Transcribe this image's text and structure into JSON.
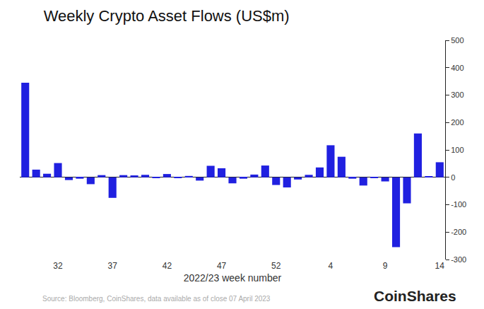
{
  "chart_data": {
    "type": "bar",
    "title": "Weekly Crypto Asset Flows (US$m)",
    "x_label": "2022/23 week number",
    "source": "Source: Bloomberg, CoinShares, data available as of close 07 April 2023",
    "annotations": [
      "CoinShares"
    ],
    "categories": [
      null,
      null,
      null,
      "32",
      null,
      null,
      null,
      null,
      "37",
      null,
      null,
      null,
      null,
      "42",
      null,
      null,
      null,
      null,
      "47",
      null,
      null,
      null,
      null,
      "52",
      null,
      null,
      null,
      null,
      "4",
      null,
      null,
      null,
      null,
      "9",
      null,
      null,
      null,
      null,
      "14"
    ],
    "values": [
      345,
      28,
      13,
      52,
      -10,
      -5,
      -25,
      8,
      -75,
      8,
      7,
      9,
      -3,
      12,
      -2,
      5,
      -12,
      42,
      33,
      -22,
      -5,
      10,
      43,
      -28,
      -37,
      -8,
      9,
      36,
      117,
      75,
      -5,
      -30,
      -2,
      -15,
      -255,
      -95,
      160,
      3,
      55
    ],
    "color": "#2020e0",
    "ylim": [
      -300,
      500
    ],
    "yticks": [
      -300,
      -200,
      -100,
      0,
      100,
      200,
      300,
      400,
      500
    ],
    "grid": false
  }
}
